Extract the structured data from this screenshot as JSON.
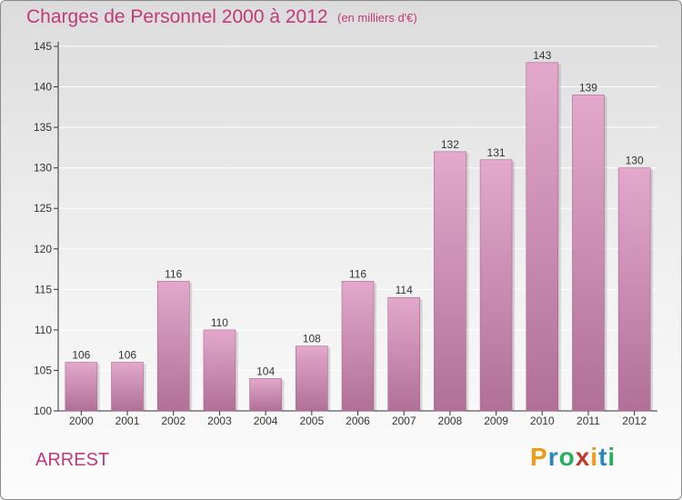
{
  "header": {
    "title": "Charges de Personnel 2000 à 2012",
    "subtitle": "(en milliers d'€)"
  },
  "footer": {
    "commune": "ARREST",
    "logo_letters": [
      "P",
      "r",
      "o",
      "x",
      "i",
      "t",
      "i"
    ],
    "logo_colors": [
      "#f39c12",
      "#2e86c1",
      "#27ae60",
      "#c0392b",
      "#f39c12",
      "#2e86c1",
      "#27ae60"
    ]
  },
  "colors": {
    "bar_top": "#e4a8cc",
    "bar_bottom": "#b07098",
    "text_accent": "#c0397a",
    "axis": "#333333"
  },
  "chart_data": {
    "type": "bar",
    "categories": [
      "2000",
      "2001",
      "2002",
      "2003",
      "2004",
      "2005",
      "2006",
      "2007",
      "2008",
      "2009",
      "2010",
      "2011",
      "2012"
    ],
    "values": [
      106,
      106,
      116,
      110,
      104,
      108,
      116,
      114,
      132,
      131,
      143,
      139,
      130
    ],
    "ylim": [
      100,
      145
    ],
    "yticks": [
      100,
      105,
      110,
      115,
      120,
      125,
      130,
      135,
      140,
      145
    ],
    "grid": true
  }
}
